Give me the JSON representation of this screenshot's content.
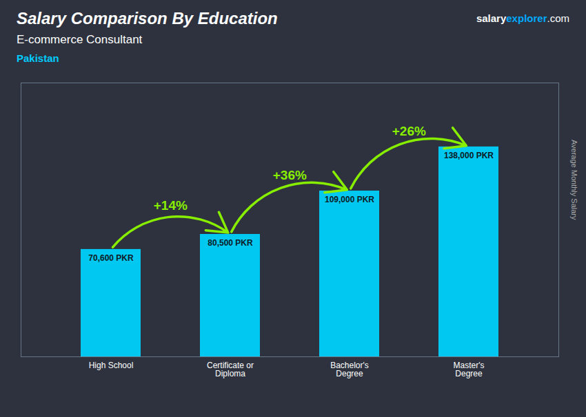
{
  "chart_data": {
    "type": "bar",
    "title": "Salary Comparison By Education",
    "subtitle": "E-commerce Consultant",
    "country": {
      "text": "Pakistan",
      "color": "#00ccff"
    },
    "watermark": [
      {
        "text": "salary",
        "color": "#ffffff"
      },
      {
        "text": "explorer",
        "color": "#00aaff"
      },
      {
        "text": ".com",
        "color": "#ffffff"
      }
    ],
    "ylabel": "Average Monthly Salary",
    "categories": [
      "High School",
      "Certificate or\nDiploma",
      "Bachelor's\nDegree",
      "Master's\nDegree"
    ],
    "values": [
      70600,
      80500,
      109000,
      138000
    ],
    "value_labels": [
      "70,600 PKR",
      "80,500 PKR",
      "109,000 PKR",
      "138,000 PKR"
    ],
    "data_labels": true,
    "color": "#00c8f0",
    "annotations": [
      {
        "text": "+14%",
        "from": "High School",
        "to": "Certificate or\nDiploma",
        "color": "#88ee00"
      },
      {
        "text": "+36%",
        "from": "Certificate or\nDiploma",
        "to": "Bachelor's\nDegree",
        "color": "#88ee00"
      },
      {
        "text": "+26%",
        "from": "Bachelor's\nDegree",
        "to": "Master's\nDegree",
        "color": "#88ee00"
      }
    ],
    "ylim": [
      0,
      180000
    ],
    "tick_labels": "x",
    "grid": false
  }
}
